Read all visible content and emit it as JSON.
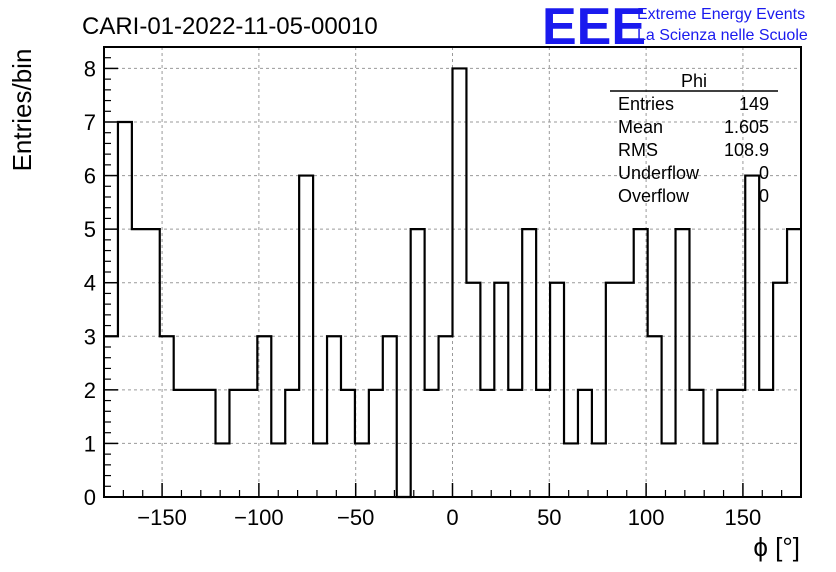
{
  "logo": {
    "mark": "EEE",
    "line1": "Extreme Energy Events",
    "line2": "La Scienza nelle Scuole",
    "color": "#1a1aee"
  },
  "chart_data": {
    "type": "histogram",
    "title": "CARI-01-2022-11-05-00010",
    "xlabel": "ϕ [°]",
    "ylabel": "Entries/bin",
    "xlim": [
      -180,
      180
    ],
    "ylim": [
      0,
      8.4
    ],
    "bin_width": 7.2,
    "xticks": [
      -150,
      -100,
      -50,
      0,
      50,
      100,
      150
    ],
    "xtick_labels": [
      "−150",
      "−100",
      "−50",
      "0",
      "50",
      "100",
      "150"
    ],
    "yticks": [
      0,
      1,
      2,
      3,
      4,
      5,
      6,
      7,
      8
    ],
    "ytick_labels": [
      "0",
      "1",
      "2",
      "3",
      "4",
      "5",
      "6",
      "7",
      "8"
    ],
    "grid": true,
    "bins_left_edges": [
      -180,
      -172.8,
      -165.6,
      -158.4,
      -151.2,
      -144,
      -136.8,
      -129.6,
      -122.4,
      -115.2,
      -108,
      -100.8,
      -93.6,
      -86.4,
      -79.2,
      -72,
      -64.8,
      -57.6,
      -50.4,
      -43.2,
      -36,
      -28.8,
      -21.6,
      -14.4,
      -7.2,
      0,
      7.2,
      14.4,
      21.6,
      28.8,
      36,
      43.2,
      50.4,
      57.6,
      64.8,
      72,
      79.2,
      86.4,
      93.6,
      100.8,
      108,
      115.2,
      122.4,
      129.6,
      136.8,
      144,
      151.2,
      158.4,
      165.6,
      172.8
    ],
    "values": [
      3,
      7,
      5,
      5,
      3,
      2,
      2,
      2,
      1,
      2,
      2,
      3,
      1,
      2,
      6,
      1,
      3,
      2,
      1,
      2,
      3,
      0,
      5,
      2,
      3,
      8,
      4,
      2,
      4,
      2,
      5,
      2,
      4,
      1,
      2,
      1,
      4,
      4,
      5,
      3,
      1,
      5,
      2,
      1,
      2,
      2,
      6,
      2,
      4,
      5
    ],
    "line_color": "#000000",
    "stats": {
      "name": "Phi",
      "rows": [
        {
          "label": "Entries",
          "value": "149"
        },
        {
          "label": "Mean",
          "value": "1.605"
        },
        {
          "label": "RMS",
          "value": "108.9"
        },
        {
          "label": "Underflow",
          "value": "0"
        },
        {
          "label": "Overflow",
          "value": "0"
        }
      ]
    }
  }
}
